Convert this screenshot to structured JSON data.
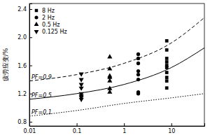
{
  "chart_data": {
    "type": "scatter",
    "y_label": "疲劳应变/%",
    "log": "x",
    "grid": false,
    "legend": "upper left",
    "xlim": [
      0.01,
      50
    ],
    "ylim": [
      0.74,
      2.48
    ],
    "xticks": [
      0.01,
      0.1,
      1,
      10
    ],
    "yticks": [
      0.8,
      1.2,
      1.6,
      {
        "value": 2,
        "label": "2.0"
      },
      2.4
    ],
    "series": [
      {
        "name": "8 Hz",
        "type": "scatter",
        "marker": "square",
        "color": "#000000",
        "x": [
          8,
          8,
          8,
          8,
          8,
          8,
          8,
          8,
          8,
          8
        ],
        "values": [
          1.95,
          1.82,
          1.7,
          1.65,
          1.6,
          1.57,
          1.5,
          1.43,
          1.38,
          1.28
        ]
      },
      {
        "name": "2 Hz",
        "type": "scatter",
        "marker": "circle",
        "color": "#000000",
        "x": [
          2,
          2,
          2,
          2,
          2,
          2,
          2,
          2
        ],
        "values": [
          1.76,
          1.7,
          1.63,
          1.52,
          1.47,
          1.4,
          1.22,
          1.2
        ]
      },
      {
        "name": "0.5 Hz",
        "type": "scatter",
        "marker": "triangle-up",
        "color": "#000000",
        "x": [
          0.5,
          0.5,
          0.5,
          0.5,
          0.5,
          0.5,
          0.5
        ],
        "values": [
          1.72,
          1.55,
          1.45,
          1.43,
          1.38,
          1.27,
          1.22
        ]
      },
      {
        "name": "0.125 Hz",
        "type": "scatter",
        "marker": "triangle-down",
        "color": "#000000",
        "x": [
          0.125,
          0.125,
          0.125,
          0.125,
          0.125,
          0.125,
          0.125,
          0.125
        ],
        "values": [
          1.48,
          1.4,
          1.33,
          1.28,
          1.2,
          1.17,
          1.15,
          1.12
        ]
      },
      {
        "name": "PF=0.9",
        "type": "line",
        "line_style": "dashed",
        "color": "#000000",
        "x": [
          0.01,
          0.1,
          1,
          10,
          50
        ],
        "values": [
          1.38,
          1.47,
          1.63,
          1.92,
          2.28
        ]
      },
      {
        "name": "PF=0.5",
        "type": "line",
        "line_style": "solid",
        "color": "#000000",
        "x": [
          0.01,
          0.1,
          1,
          10,
          50
        ],
        "values": [
          1.12,
          1.2,
          1.33,
          1.57,
          1.85
        ]
      },
      {
        "name": "PF=0.1",
        "type": "line",
        "line_style": "dotted",
        "color": "#000000",
        "x": [
          0.01,
          0.1,
          1,
          10,
          50
        ],
        "values": [
          0.88,
          0.96,
          1.06,
          1.14,
          1.2
        ]
      }
    ]
  }
}
